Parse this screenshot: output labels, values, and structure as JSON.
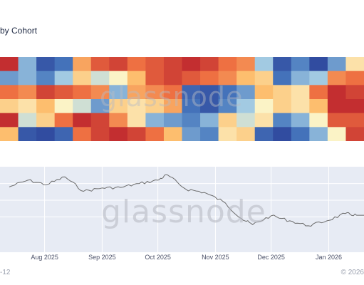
{
  "title": "by Cohort",
  "watermark": "glassnode",
  "footer": {
    "left": "-12",
    "right": "© 2026"
  },
  "colors": {
    "plot_bg": "#e7ebf4",
    "line": "#6b6b6b",
    "cold": "#2b3f97",
    "hot": "#b4182a",
    "neutral": "#fbf3c6"
  },
  "chart_data": [
    {
      "type": "heatmap",
      "rows": 6,
      "x": [
        "2025-07-10",
        "2025-07-20",
        "2025-07-30",
        "2025-08-09",
        "2025-08-19",
        "2025-08-29",
        "2025-09-08",
        "2025-09-18",
        "2025-09-28",
        "2025-10-08",
        "2025-10-18",
        "2025-10-28",
        "2025-11-07",
        "2025-11-17",
        "2025-11-27",
        "2025-12-07",
        "2025-12-17",
        "2025-12-27",
        "2026-01-06",
        "2026-01-16"
      ],
      "z": [
        [
          0.9,
          -0.3,
          -0.8,
          -0.6,
          0.4,
          0.7,
          0.8,
          0.6,
          0.7,
          0.8,
          0.9,
          0.8,
          0.6,
          0.5,
          -0.2,
          -0.8,
          -0.5,
          -0.9,
          -0.4,
          0.1
        ],
        [
          -0.4,
          -0.3,
          -0.5,
          -0.2,
          0.2,
          -0.1,
          0.0,
          0.3,
          0.7,
          0.8,
          0.7,
          0.6,
          0.5,
          0.3,
          0.2,
          -0.6,
          -0.3,
          -0.2,
          0.5,
          0.6
        ],
        [
          0.6,
          0.5,
          0.8,
          0.7,
          0.6,
          0.5,
          -0.3,
          0.4,
          0.5,
          0.6,
          -0.7,
          -0.8,
          -0.6,
          -0.4,
          0.3,
          0.2,
          0.1,
          0.6,
          0.9,
          0.8
        ],
        [
          0.2,
          0.1,
          0.3,
          0.0,
          -0.1,
          -0.4,
          0.2,
          0.1,
          0.2,
          0.4,
          -0.6,
          -0.8,
          -0.5,
          -0.2,
          0.0,
          0.2,
          0.1,
          0.3,
          0.9,
          0.9
        ],
        [
          0.9,
          -0.1,
          0.2,
          0.6,
          0.9,
          0.8,
          0.5,
          0.1,
          -0.3,
          -0.4,
          -0.5,
          -0.3,
          0.2,
          -0.1,
          0.1,
          -0.5,
          -0.3,
          0.0,
          0.7,
          0.7
        ],
        [
          0.3,
          -0.8,
          -0.9,
          -0.7,
          0.6,
          0.8,
          0.9,
          0.8,
          0.6,
          0.3,
          -0.4,
          -0.5,
          0.1,
          0.2,
          -0.7,
          -0.9,
          -0.6,
          -0.3,
          0.0,
          0.8
        ]
      ]
    },
    {
      "type": "line",
      "x": [
        "2025-07-13",
        "2025-07-23",
        "2025-08-02",
        "2025-08-12",
        "2025-08-22",
        "2025-09-01",
        "2025-09-11",
        "2025-09-21",
        "2025-10-01",
        "2025-10-06",
        "2025-10-16",
        "2025-10-26",
        "2025-11-05",
        "2025-11-15",
        "2025-11-21",
        "2025-12-01",
        "2025-12-11",
        "2025-12-21",
        "2025-12-31",
        "2026-01-10",
        "2026-01-16"
      ],
      "y": [
        0.74,
        0.86,
        0.78,
        0.92,
        0.66,
        0.72,
        0.73,
        0.8,
        0.86,
        0.96,
        0.7,
        0.64,
        0.48,
        0.17,
        0.06,
        0.22,
        0.13,
        0.04,
        0.13,
        0.26,
        0.23
      ],
      "xticks": [
        "Aug 2025",
        "Sep 2025",
        "Oct 2025",
        "Nov 2025",
        "Dec 2025",
        "Jan 2026"
      ],
      "xlim": [
        "2025-07-08",
        "2026-01-20"
      ],
      "grid": true
    }
  ]
}
